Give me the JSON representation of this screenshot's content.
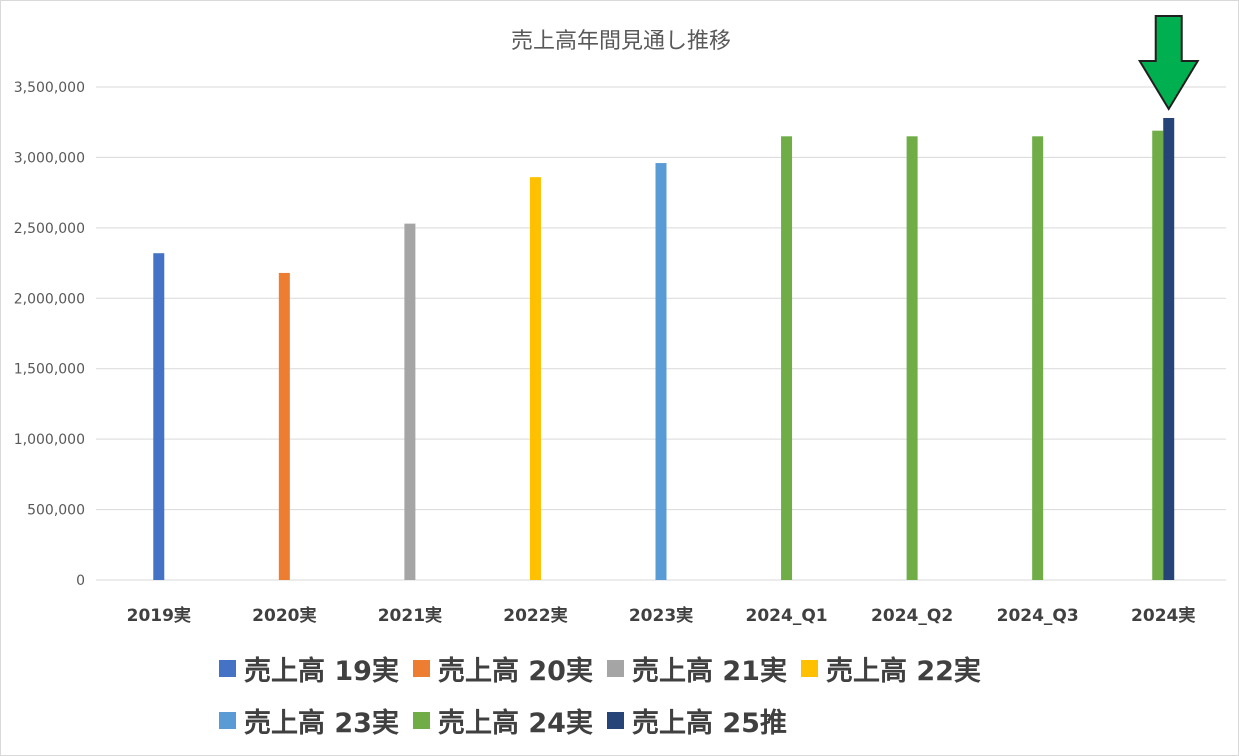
{
  "chart_data": {
    "type": "bar",
    "title": "売上高年間見通し推移",
    "categories": [
      "2019実",
      "2020実",
      "2021実",
      "2022実",
      "2023実",
      "2024_Q1",
      "2024_Q2",
      "2024_Q3",
      "2024実"
    ],
    "y_ticks": [
      "0",
      "500,000",
      "1,000,000",
      "1,500,000",
      "2,000,000",
      "2,500,000",
      "3,000,000",
      "3,500,000"
    ],
    "ylim": [
      0,
      3500000
    ],
    "grid": true,
    "legend_position": "bottom",
    "series": [
      {
        "name": "売上高 19実",
        "color": "#4472C4",
        "values": [
          2320000,
          null,
          null,
          null,
          null,
          null,
          null,
          null,
          null
        ]
      },
      {
        "name": "売上高 20実",
        "color": "#ED7D31",
        "values": [
          null,
          2180000,
          null,
          null,
          null,
          null,
          null,
          null,
          null
        ]
      },
      {
        "name": "売上高 21実",
        "color": "#A5A5A5",
        "values": [
          null,
          null,
          2530000,
          null,
          null,
          null,
          null,
          null,
          null
        ]
      },
      {
        "name": "売上高 22実",
        "color": "#FFC000",
        "values": [
          null,
          null,
          null,
          2860000,
          null,
          null,
          null,
          null,
          null
        ]
      },
      {
        "name": "売上高 23実",
        "color": "#5B9BD5",
        "values": [
          null,
          null,
          null,
          null,
          2960000,
          null,
          null,
          null,
          null
        ]
      },
      {
        "name": "売上高 24実",
        "color": "#70AD47",
        "values": [
          null,
          null,
          null,
          null,
          null,
          3150000,
          3150000,
          3150000,
          3190000
        ]
      },
      {
        "name": "売上高 25推",
        "color": "#264478",
        "values": [
          null,
          null,
          null,
          null,
          null,
          null,
          null,
          null,
          3280000
        ]
      }
    ],
    "annotation": {
      "type": "arrow-down",
      "color": "#00B050",
      "points_to_category": "2024実"
    }
  }
}
